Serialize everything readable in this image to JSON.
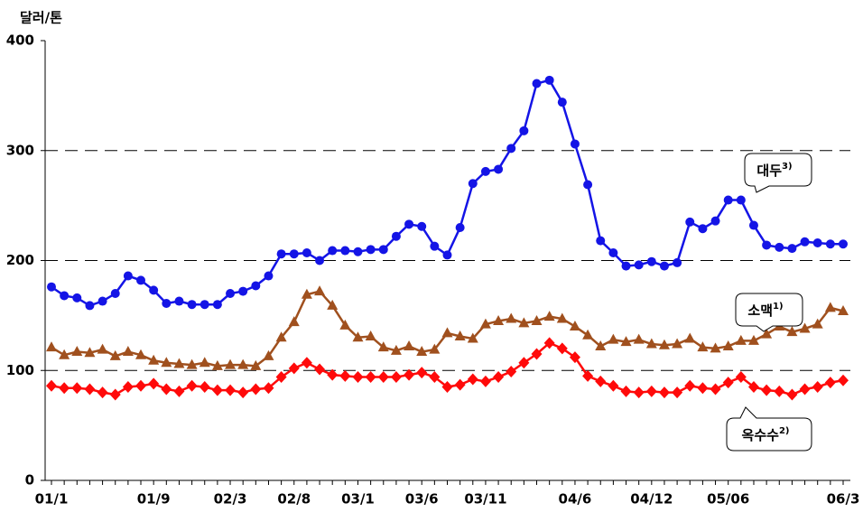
{
  "chart_data": {
    "type": "line",
    "y_label": "달러/톤",
    "categories": [
      "01/1",
      null,
      null,
      null,
      null,
      null,
      null,
      null,
      "01/9",
      null,
      null,
      null,
      null,
      null,
      "02/3",
      null,
      null,
      null,
      null,
      "02/8",
      null,
      null,
      null,
      null,
      "03/1",
      null,
      null,
      null,
      null,
      "03/6",
      null,
      null,
      null,
      null,
      "03/11",
      null,
      null,
      null,
      null,
      null,
      null,
      "04/6",
      null,
      null,
      null,
      null,
      null,
      "04/12",
      null,
      null,
      null,
      null,
      null,
      "05/06",
      null,
      null,
      null,
      null,
      null,
      null,
      null,
      null,
      "06/3"
    ],
    "series": [
      {
        "name": "대두",
        "note": "3)",
        "color": "#1414e6",
        "marker": "circle",
        "values": [
          176,
          168,
          166,
          159,
          163,
          170,
          186,
          182,
          173,
          161,
          163,
          160,
          160,
          160,
          170,
          172,
          177,
          186,
          206,
          206,
          207,
          200,
          209,
          209,
          208,
          210,
          210,
          222,
          233,
          231,
          213,
          205,
          230,
          270,
          281,
          283,
          302,
          318,
          361,
          364,
          344,
          306,
          269,
          218,
          207,
          195,
          196,
          199,
          195,
          198,
          235,
          229,
          236,
          255,
          255,
          232,
          214,
          212,
          211,
          217,
          216,
          215,
          215
        ]
      },
      {
        "name": "소맥",
        "note": "1)",
        "color": "#a0501e",
        "marker": "triangle",
        "values": [
          121,
          114,
          117,
          116,
          119,
          113,
          117,
          114,
          109,
          107,
          106,
          105,
          107,
          104,
          105,
          105,
          104,
          113,
          130,
          144,
          169,
          172,
          159,
          141,
          130,
          131,
          121,
          118,
          122,
          117,
          119,
          134,
          131,
          129,
          142,
          145,
          147,
          143,
          145,
          149,
          147,
          140,
          132,
          122,
          128,
          126,
          128,
          124,
          123,
          124,
          129,
          121,
          120,
          122,
          127,
          127,
          133,
          140,
          135,
          138,
          142,
          157,
          154
        ]
      },
      {
        "name": "옥수수",
        "note": "2)",
        "color": "#ff0a0a",
        "marker": "diamond",
        "values": [
          86,
          84,
          84,
          83,
          80,
          78,
          85,
          86,
          88,
          83,
          81,
          86,
          85,
          82,
          82,
          80,
          83,
          84,
          94,
          102,
          107,
          101,
          96,
          95,
          94,
          94,
          94,
          94,
          96,
          98,
          94,
          85,
          87,
          92,
          90,
          94,
          99,
          107,
          115,
          125,
          120,
          112,
          95,
          90,
          86,
          81,
          80,
          81,
          80,
          80,
          86,
          84,
          83,
          89,
          94,
          85,
          82,
          81,
          78,
          83,
          85,
          89,
          91
        ]
      }
    ],
    "ylim": [
      0,
      400
    ],
    "yticks": [
      0,
      100,
      200,
      300,
      400
    ],
    "grid": true
  }
}
